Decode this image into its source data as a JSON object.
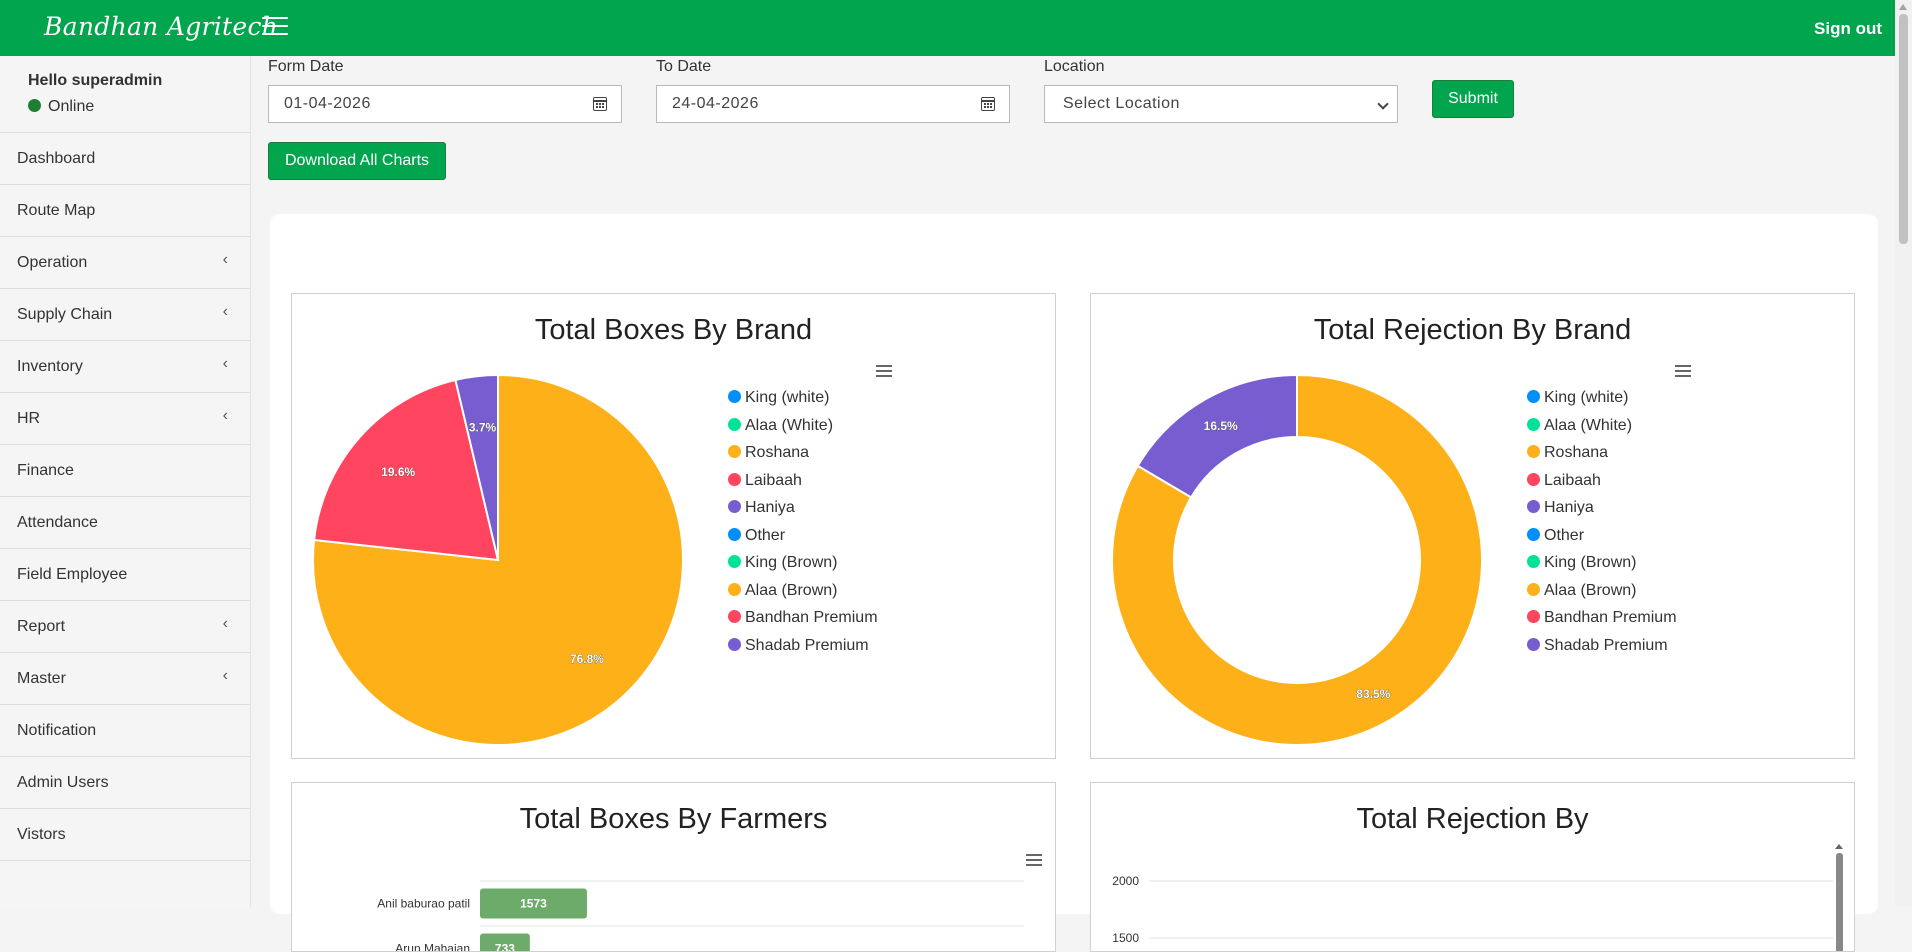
{
  "header": {
    "brand": "Bandhan Agritech",
    "signout": "Sign out"
  },
  "user": {
    "greeting": "Hello superadmin",
    "status": "Online"
  },
  "sidebar": {
    "items": [
      {
        "label": "Dashboard",
        "has_submenu": false
      },
      {
        "label": "Route Map",
        "has_submenu": false
      },
      {
        "label": "Operation",
        "has_submenu": true
      },
      {
        "label": "Supply Chain",
        "has_submenu": true
      },
      {
        "label": "Inventory",
        "has_submenu": true
      },
      {
        "label": "HR",
        "has_submenu": true
      },
      {
        "label": "Finance",
        "has_submenu": false
      },
      {
        "label": "Attendance",
        "has_submenu": false
      },
      {
        "label": "Field Employee",
        "has_submenu": false
      },
      {
        "label": "Report",
        "has_submenu": true
      },
      {
        "label": "Master",
        "has_submenu": true
      },
      {
        "label": "Notification",
        "has_submenu": false
      },
      {
        "label": "Admin Users",
        "has_submenu": false
      },
      {
        "label": "Vistors",
        "has_submenu": false
      }
    ]
  },
  "filters": {
    "from_label": "Form Date",
    "from_value": "01-04-2026",
    "to_label": "To Date",
    "to_value": "24-04-2026",
    "location_label": "Location",
    "location_value": "Select Location",
    "submit": "Submit",
    "download": "Download All Charts"
  },
  "colors": {
    "header": "#00a54e",
    "blue": "#008ffb",
    "teal": "#00e396",
    "orange": "#feb019",
    "red": "#ff4560",
    "purple": "#775dd0",
    "bar": "#6cab6a"
  },
  "legend": [
    {
      "name": "King (white)",
      "color": "#008ffb"
    },
    {
      "name": "Alaa (White)",
      "color": "#00e396"
    },
    {
      "name": "Roshana",
      "color": "#feb019"
    },
    {
      "name": "Laibaah",
      "color": "#ff4560"
    },
    {
      "name": "Haniya",
      "color": "#775dd0"
    },
    {
      "name": "Other",
      "color": "#008ffb"
    },
    {
      "name": "King (Brown)",
      "color": "#00e396"
    },
    {
      "name": "Alaa (Brown)",
      "color": "#feb019"
    },
    {
      "name": "Bandhan Premium",
      "color": "#ff4560"
    },
    {
      "name": "Shadab Premium",
      "color": "#775dd0"
    }
  ],
  "chart_data": [
    {
      "type": "pie",
      "title": "Total Boxes By Brand",
      "slices": [
        {
          "name": "Roshana",
          "value": 76.8,
          "label": "76.8%",
          "color": "#feb019"
        },
        {
          "name": "Laibaah",
          "value": 19.6,
          "label": "19.6%",
          "color": "#ff4560"
        },
        {
          "name": "Haniya",
          "value": 3.7,
          "label": "3.7%",
          "color": "#775dd0"
        }
      ],
      "legend_position": "right"
    },
    {
      "type": "pie",
      "variant": "donut",
      "title": "Total Rejection By Brand",
      "slices": [
        {
          "name": "Roshana",
          "value": 83.5,
          "label": "83.5%",
          "color": "#feb019"
        },
        {
          "name": "Haniya",
          "value": 16.5,
          "label": "16.5%",
          "color": "#775dd0"
        }
      ],
      "legend_position": "right"
    },
    {
      "type": "bar",
      "orientation": "horizontal",
      "title": "Total Boxes By Farmers",
      "categories": [
        "Anil baburao patil",
        "Arun Mahajan"
      ],
      "values": [
        1573,
        733
      ],
      "value_labels": [
        "1573",
        "733"
      ],
      "xlim": [
        0,
        8000
      ]
    },
    {
      "type": "line",
      "title": "Total Rejection By",
      "y_ticks": [
        "2000",
        "1500"
      ],
      "ylim": [
        0,
        2000
      ],
      "grid": true
    }
  ]
}
